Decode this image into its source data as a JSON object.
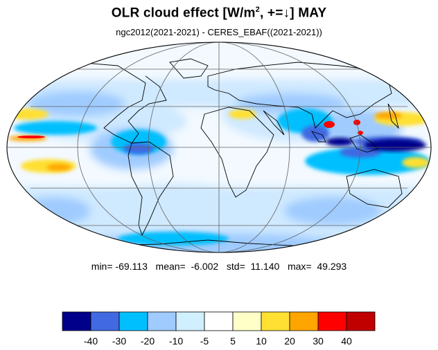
{
  "title": {
    "main_before": "OLR cloud effect [W/m",
    "sup": "2",
    "main_after": ", +=↓]  MAY"
  },
  "subtitle": "ngc2012(2021-2021) - CERES_EBAF((2021-2021))",
  "stats": {
    "min_label": "min=",
    "min": "-69.113",
    "mean_label": "mean=",
    "mean": "-6.002",
    "std_label": "std=",
    "std": "11.140",
    "max_label": "max=",
    "max": "49.293"
  },
  "colorbar": {
    "colors": [
      "#00008b",
      "#4169e1",
      "#00bfff",
      "#9fcbff",
      "#d0efff",
      "#ffffff",
      "#ffffc8",
      "#ffe033",
      "#ffa500",
      "#ff0000",
      "#c00000"
    ],
    "labels": [
      "-40",
      "-30",
      "-20",
      "-10",
      "-5",
      "5",
      "10",
      "20",
      "30",
      "40"
    ]
  },
  "map": {
    "projection": "mollweide",
    "graticule_lon_step_deg": 60,
    "graticule_lat_step_deg": 30,
    "colors": {
      "ocean_base": "#f3f9ff",
      "land_outline": "#000000",
      "grid": "#606060"
    }
  }
}
